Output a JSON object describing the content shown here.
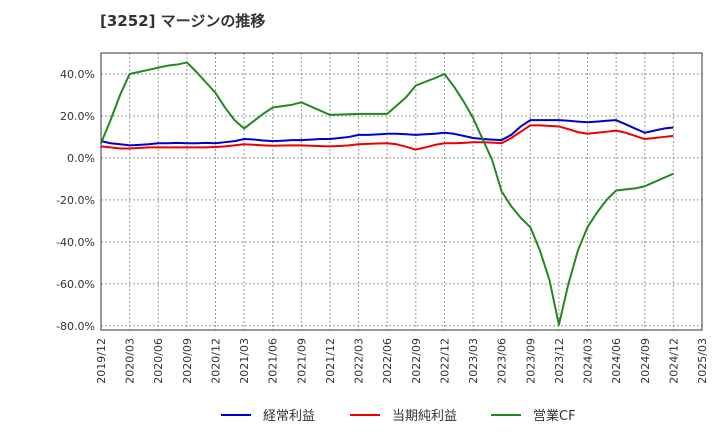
{
  "chart_data": {
    "type": "line",
    "title": "[3252]  マージンの推移",
    "xlabel": "",
    "ylabel": "",
    "ylim": [
      -82,
      50
    ],
    "grid": true,
    "legend_position": "bottom",
    "y_ticks": [
      -80,
      -60,
      -40,
      -20,
      0,
      20,
      40
    ],
    "y_tick_labels": [
      "-80.0%",
      "-60.0%",
      "-40.0%",
      "-20.0%",
      "0.0%",
      "20.0%",
      "40.0%"
    ],
    "x_ticks": [
      "2019/12",
      "2020/03",
      "2020/06",
      "2020/09",
      "2020/12",
      "2021/03",
      "2021/06",
      "2021/09",
      "2021/12",
      "2022/03",
      "2022/06",
      "2022/09",
      "2022/12",
      "2023/03",
      "2023/06",
      "2023/09",
      "2023/12",
      "2024/03",
      "2024/06",
      "2024/09",
      "2024/12",
      "2025/03"
    ],
    "x": [
      "2019/12",
      "2020/01",
      "2020/02",
      "2020/03",
      "2020/04",
      "2020/05",
      "2020/06",
      "2020/07",
      "2020/08",
      "2020/09",
      "2020/10",
      "2020/11",
      "2020/12",
      "2021/01",
      "2021/02",
      "2021/03",
      "2021/04",
      "2021/05",
      "2021/06",
      "2021/07",
      "2021/08",
      "2021/09",
      "2021/10",
      "2021/11",
      "2021/12",
      "2022/01",
      "2022/02",
      "2022/03",
      "2022/04",
      "2022/05",
      "2022/06",
      "2022/07",
      "2022/08",
      "2022/09",
      "2022/10",
      "2022/11",
      "2022/12",
      "2023/01",
      "2023/02",
      "2023/03",
      "2023/04",
      "2023/05",
      "2023/06",
      "2023/07",
      "2023/08",
      "2023/09",
      "2023/10",
      "2023/11",
      "2023/12",
      "2024/01",
      "2024/02",
      "2024/03",
      "2024/04",
      "2024/05",
      "2024/06",
      "2024/07",
      "2024/08",
      "2024/09",
      "2024/10",
      "2024/11",
      "2024/12"
    ],
    "series": [
      {
        "name": "経常利益",
        "color": "#0000cc",
        "values": [
          8.0,
          7.0,
          6.5,
          6.0,
          6.2,
          6.5,
          7.0,
          7.0,
          7.2,
          7.0,
          7.0,
          7.2,
          7.0,
          7.5,
          8.0,
          9.0,
          8.8,
          8.3,
          8.0,
          8.2,
          8.5,
          8.5,
          8.7,
          9.0,
          9.0,
          9.5,
          10.0,
          11.0,
          11.0,
          11.2,
          11.5,
          11.5,
          11.3,
          11.0,
          11.3,
          11.5,
          12.0,
          11.5,
          10.5,
          9.5,
          9.0,
          8.7,
          8.5,
          11.0,
          15.0,
          18.0,
          18.0,
          18.0,
          18.0,
          17.7,
          17.3,
          17.0,
          17.3,
          17.7,
          18.0,
          16.0,
          14.0,
          12.0,
          13.0,
          14.0,
          14.5
        ]
      },
      {
        "name": "当期純利益",
        "color": "#ee0000",
        "values": [
          5.5,
          5.0,
          4.5,
          4.5,
          4.7,
          5.0,
          5.0,
          5.0,
          5.0,
          5.0,
          5.0,
          5.0,
          5.2,
          5.5,
          6.0,
          6.5,
          6.3,
          6.0,
          5.8,
          5.9,
          6.0,
          6.0,
          5.8,
          5.6,
          5.5,
          5.7,
          6.0,
          6.5,
          6.7,
          6.9,
          7.0,
          6.5,
          5.3,
          4.0,
          5.0,
          6.2,
          7.0,
          7.0,
          7.2,
          7.5,
          7.5,
          7.3,
          7.0,
          9.5,
          12.5,
          15.5,
          15.5,
          15.3,
          15.0,
          13.7,
          12.3,
          11.5,
          12.0,
          12.5,
          13.0,
          12.0,
          10.5,
          9.0,
          9.5,
          10.0,
          10.5
        ]
      },
      {
        "name": "営業CF",
        "color": "#228822",
        "values": [
          7.0,
          18.0,
          30.0,
          40.0,
          41.0,
          42.0,
          43.0,
          44.0,
          44.5,
          45.5,
          41.0,
          36.0,
          31.0,
          24.0,
          18.0,
          14.0,
          17.5,
          21.0,
          24.0,
          24.7,
          25.3,
          26.5,
          24.5,
          22.5,
          20.5,
          20.7,
          20.8,
          21.0,
          21.0,
          21.0,
          21.0,
          25.0,
          29.0,
          34.5,
          36.3,
          38.0,
          40.0,
          34.0,
          27.0,
          19.0,
          9.0,
          -1.0,
          -16.0,
          -23.0,
          -28.5,
          -33.0,
          -44.0,
          -58.0,
          -79.5,
          -60.0,
          -44.0,
          -33.0,
          -26.0,
          -20.0,
          -15.5,
          -15.0,
          -14.5,
          -13.5,
          -11.5,
          -9.5,
          -7.5
        ]
      }
    ]
  }
}
